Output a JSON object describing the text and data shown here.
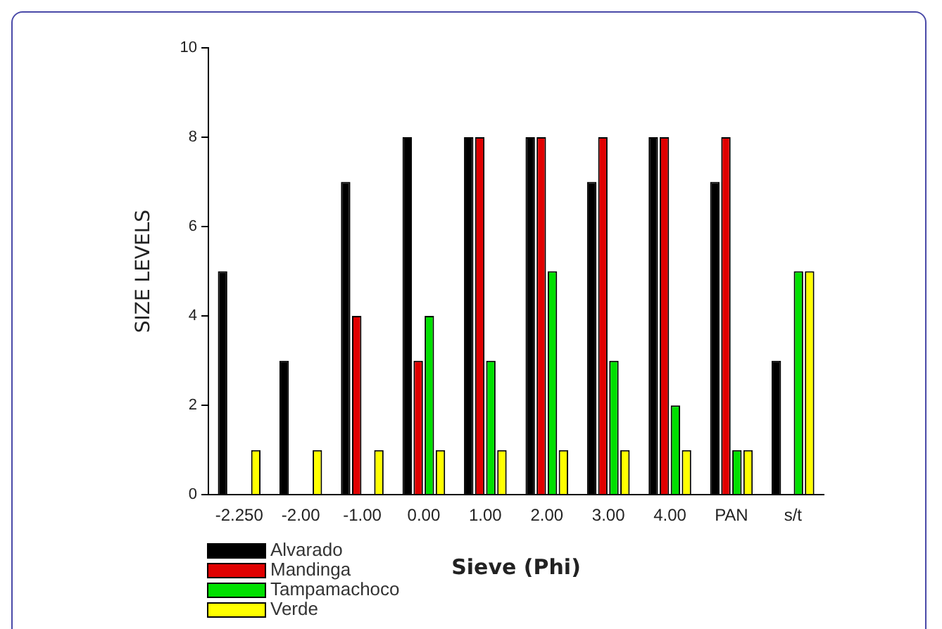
{
  "chart_data": {
    "type": "bar",
    "xlabel": "Sieve (Phi)",
    "ylabel": "SIZE LEVELS",
    "categories": [
      "-2.250",
      "-2.00",
      "-1.00",
      "0.00",
      "1.00",
      "2.00",
      "3.00",
      "4.00",
      "PAN",
      "s/t"
    ],
    "series": [
      {
        "name": "Alvarado",
        "color": "#000000",
        "values": [
          5,
          3,
          7,
          8,
          8,
          8,
          7,
          8,
          7,
          3
        ]
      },
      {
        "name": "Mandinga",
        "color": "#e00000",
        "values": [
          0,
          0,
          4,
          3,
          8,
          8,
          8,
          8,
          8,
          0
        ]
      },
      {
        "name": "Tampamachoco",
        "color": "#00e000",
        "values": [
          0,
          0,
          0,
          4,
          3,
          5,
          3,
          2,
          1,
          5
        ]
      },
      {
        "name": "Verde",
        "color": "#ffff00",
        "values": [
          1,
          1,
          1,
          1,
          1,
          1,
          1,
          1,
          1,
          5
        ]
      }
    ],
    "ylim": [
      0,
      10
    ],
    "yticks": [
      0,
      2,
      4,
      6,
      8,
      10
    ],
    "grid": false,
    "legend": "bottom left"
  }
}
